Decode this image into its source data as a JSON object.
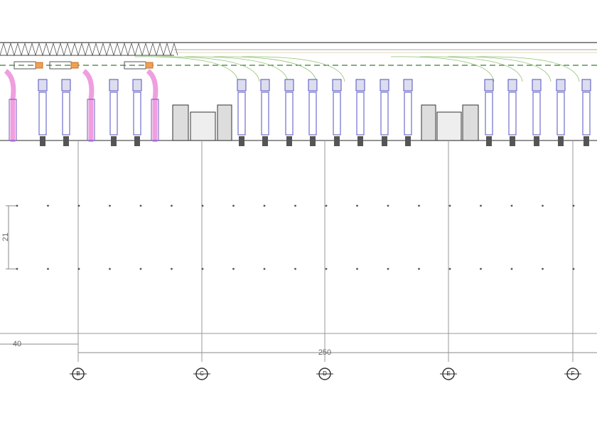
{
  "dimensions": {
    "left": "40",
    "total": "250",
    "height": "21"
  },
  "grid_markers": [
    "B",
    "C",
    "D",
    "E",
    "F"
  ]
}
